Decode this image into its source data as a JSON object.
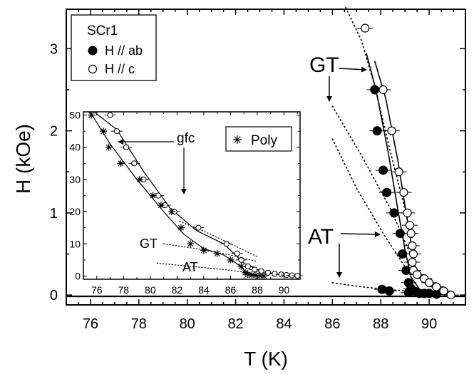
{
  "chart_data": [
    {
      "type": "scatter",
      "xlabel": "T (K)",
      "ylabel": "H (kOe)",
      "xlim": [
        75,
        91.5
      ],
      "ylim": [
        -0.12,
        3.48
      ],
      "xticks": [
        76,
        78,
        80,
        82,
        84,
        86,
        88,
        90
      ],
      "yticks": [
        0,
        1,
        2,
        3
      ],
      "legend": {
        "title": "SCr1",
        "placement": "top-left",
        "entries": [
          {
            "label": "H // ab",
            "marker": "filled-circle"
          },
          {
            "label": "H // c",
            "marker": "open-circle"
          }
        ]
      },
      "series": [
        {
          "name": "H // ab",
          "marker": "filled-circle",
          "points": [
            {
              "x": 87.75,
              "y": 2.5
            },
            {
              "x": 87.85,
              "y": 2.0
            },
            {
              "x": 88.1,
              "y": 1.52
            },
            {
              "x": 88.25,
              "y": 1.25
            },
            {
              "x": 88.55,
              "y": 1.0
            },
            {
              "x": 88.8,
              "y": 0.75
            },
            {
              "x": 88.9,
              "y": 0.5
            },
            {
              "x": 89.05,
              "y": 0.3
            },
            {
              "x": 89.15,
              "y": 0.15
            },
            {
              "x": 89.25,
              "y": 0.08
            },
            {
              "x": 89.45,
              "y": 0.04
            },
            {
              "x": 88.05,
              "y": 0.07
            },
            {
              "x": 88.35,
              "y": 0.05
            },
            {
              "x": 89.15,
              "y": 0.03
            },
            {
              "x": 89.6,
              "y": 0.02
            },
            {
              "x": 89.8,
              "y": 0.02
            },
            {
              "x": 90.0,
              "y": 0.02
            },
            {
              "x": 90.3,
              "y": 0.01
            }
          ]
        },
        {
          "name": "H // c",
          "marker": "open-circle",
          "points": [
            {
              "x": 87.35,
              "y": 3.25
            },
            {
              "x": 88.1,
              "y": 2.5
            },
            {
              "x": 88.45,
              "y": 2.0
            },
            {
              "x": 88.75,
              "y": 1.5
            },
            {
              "x": 88.95,
              "y": 1.25
            },
            {
              "x": 89.1,
              "y": 1.0
            },
            {
              "x": 89.2,
              "y": 0.85
            },
            {
              "x": 89.25,
              "y": 0.75
            },
            {
              "x": 89.3,
              "y": 0.6
            },
            {
              "x": 89.35,
              "y": 0.5
            },
            {
              "x": 89.3,
              "y": 0.4
            },
            {
              "x": 89.35,
              "y": 0.3
            },
            {
              "x": 89.5,
              "y": 0.25
            },
            {
              "x": 89.8,
              "y": 0.2
            },
            {
              "x": 90.0,
              "y": 0.15
            },
            {
              "x": 90.3,
              "y": 0.1
            },
            {
              "x": 90.6,
              "y": 0.05
            },
            {
              "x": 90.9,
              "y": 0.0
            }
          ]
        }
      ],
      "fit_curves": [
        {
          "series": "H // ab",
          "x": [
            87.4,
            87.8,
            88.3,
            88.7,
            89.0,
            89.25,
            89.6,
            90.2,
            90.8
          ],
          "y": [
            2.95,
            2.5,
            1.75,
            1.05,
            0.55,
            0.22,
            0.07,
            0.02,
            0.0
          ]
        },
        {
          "series": "H // c",
          "x": [
            87.75,
            88.2,
            88.7,
            89.05,
            89.3,
            89.45,
            89.75,
            90.3,
            90.95
          ],
          "y": [
            2.85,
            2.4,
            1.65,
            1.0,
            0.55,
            0.3,
            0.16,
            0.07,
            0.0
          ]
        }
      ],
      "dotted_lines": [
        {
          "x": [
            86.55,
            87.2,
            87.75,
            88.35,
            89.3
          ],
          "y": [
            3.5,
            3.1,
            2.55,
            1.8,
            0.7
          ]
        },
        {
          "x": [
            86.0,
            87.2,
            88.4,
            89.3
          ],
          "y": [
            2.3,
            1.7,
            1.05,
            0.45
          ]
        },
        {
          "x": [
            86.0,
            87.0,
            88.1,
            89.1
          ],
          "y": [
            1.9,
            1.3,
            0.75,
            0.3
          ]
        },
        {
          "x": [
            86.0,
            87.2,
            88.2,
            89.0
          ],
          "y": [
            0.15,
            0.1,
            0.07,
            0.05
          ]
        }
      ],
      "annotations": [
        {
          "id": "gt",
          "text": "GT"
        },
        {
          "id": "at",
          "text": "AT"
        }
      ]
    },
    {
      "type": "scatter",
      "role": "inset",
      "xlim": [
        75,
        91.2
      ],
      "ylim": [
        -1,
        51
      ],
      "xticks": [
        76,
        78,
        80,
        82,
        84,
        86,
        88,
        90
      ],
      "yticks": [
        0,
        10,
        20,
        30,
        40,
        50
      ],
      "legend": {
        "entries": [
          {
            "label": "Poly",
            "marker": "asterisk"
          }
        ],
        "placement": "top-right"
      },
      "series": [
        {
          "name": "open",
          "marker": "open-circle",
          "points": [
            {
              "x": 77.0,
              "y": 50
            },
            {
              "x": 77.5,
              "y": 45
            },
            {
              "x": 78.2,
              "y": 40
            },
            {
              "x": 78.8,
              "y": 35
            },
            {
              "x": 79.5,
              "y": 30
            },
            {
              "x": 80.6,
              "y": 25
            },
            {
              "x": 81.1,
              "y": 22
            },
            {
              "x": 81.8,
              "y": 20
            },
            {
              "x": 83.6,
              "y": 15
            },
            {
              "x": 85.7,
              "y": 10
            },
            {
              "x": 86.5,
              "y": 7
            },
            {
              "x": 86.8,
              "y": 5
            },
            {
              "x": 87.3,
              "y": 3
            },
            {
              "x": 87.8,
              "y": 2
            },
            {
              "x": 88.3,
              "y": 1.5
            },
            {
              "x": 88.8,
              "y": 1
            },
            {
              "x": 89.3,
              "y": 0.7
            },
            {
              "x": 89.8,
              "y": 0.5
            },
            {
              "x": 90.2,
              "y": 0.3
            },
            {
              "x": 90.6,
              "y": 0.2
            },
            {
              "x": 91.0,
              "y": 0.1
            }
          ]
        },
        {
          "name": "Poly",
          "marker": "asterisk",
          "points": [
            {
              "x": 75.6,
              "y": 50
            },
            {
              "x": 76.5,
              "y": 45
            },
            {
              "x": 76.9,
              "y": 40
            },
            {
              "x": 77.8,
              "y": 35
            },
            {
              "x": 79.2,
              "y": 30
            },
            {
              "x": 80.2,
              "y": 25
            },
            {
              "x": 80.8,
              "y": 22
            },
            {
              "x": 81.6,
              "y": 20
            },
            {
              "x": 82.3,
              "y": 15
            },
            {
              "x": 83.0,
              "y": 10
            },
            {
              "x": 84.0,
              "y": 8
            },
            {
              "x": 85.0,
              "y": 7
            },
            {
              "x": 86.0,
              "y": 5
            },
            {
              "x": 86.8,
              "y": 3
            },
            {
              "x": 87.1,
              "y": 1
            },
            {
              "x": 87.3,
              "y": 0.5
            },
            {
              "x": 87.6,
              "y": 0.3
            },
            {
              "x": 87.9,
              "y": 0.2
            },
            {
              "x": 88.2,
              "y": 0.1
            },
            {
              "x": 88.5,
              "y": 0
            }
          ]
        }
      ],
      "fit_curves": [
        {
          "series": "open",
          "x": [
            75.8,
            77.5,
            79.5,
            81.5,
            83.5,
            85.5,
            87.0,
            88.5,
            90.5
          ],
          "y": [
            51,
            45.5,
            32.5,
            21,
            14,
            10,
            4,
            1,
            0.2
          ]
        },
        {
          "series": "Poly",
          "x": [
            75.5,
            77.0,
            79.0,
            81.0,
            82.5,
            84.0,
            85.5,
            86.6,
            87.2,
            88.0
          ],
          "y": [
            51,
            41,
            30,
            20,
            13,
            8.5,
            6.5,
            3.5,
            1.2,
            0.1
          ]
        }
      ],
      "dotted_lines": [
        {
          "x": [
            82.2,
            84.5,
            86.5,
            88.0
          ],
          "y": [
            17,
            13,
            9,
            6
          ]
        },
        {
          "x": [
            81.0,
            83.5,
            86.0,
            88.0
          ],
          "y": [
            10,
            8.5,
            6.5,
            4.5
          ]
        },
        {
          "x": [
            80.5,
            83.0,
            85.5,
            87.5
          ],
          "y": [
            4,
            3,
            2,
            1
          ]
        }
      ],
      "annotations": [
        {
          "id": "gfc",
          "text": "gfc"
        },
        {
          "id": "gt",
          "text": "GT"
        },
        {
          "id": "at",
          "text": "AT"
        }
      ]
    }
  ]
}
